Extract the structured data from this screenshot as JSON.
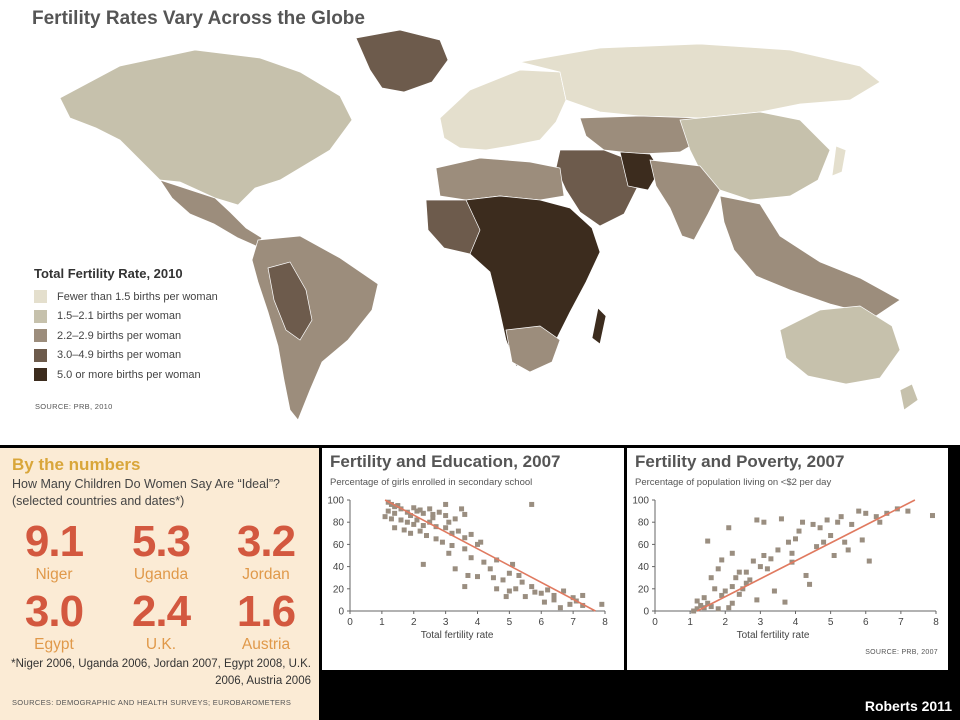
{
  "map": {
    "title": "Fertility Rates Vary Across the Globe",
    "legend_title": "Total Fertility Rate, 2010",
    "legend": [
      {
        "label": "Fewer than 1.5 births per woman",
        "color": "#e4dfcd"
      },
      {
        "label": "1.5–2.1 births per woman",
        "color": "#c6c1ac"
      },
      {
        "label": "2.2–2.9 births per woman",
        "color": "#9c8d7c"
      },
      {
        "label": "3.0–4.9 births per woman",
        "color": "#6d5b4c"
      },
      {
        "label": "5.0 or more births per woman",
        "color": "#3c2c1e"
      }
    ],
    "source": "SOURCE: PRB, 2010"
  },
  "numbers": {
    "title": "By the numbers",
    "subtitle": "How Many Children Do Women Say Are “Ideal”? (selected countries and dates*)",
    "stats": [
      {
        "value": "9.1",
        "country": "Niger"
      },
      {
        "value": "5.3",
        "country": "Uganda"
      },
      {
        "value": "3.2",
        "country": "Jordan"
      },
      {
        "value": "3.0",
        "country": "Egypt"
      },
      {
        "value": "2.4",
        "country": "U.K."
      },
      {
        "value": "1.6",
        "country": "Austria"
      }
    ],
    "note": "*Niger 2006, Uganda 2006, Jordan 2007, Egypt 2008, U.K. 2006, Austria 2006",
    "source": "SOURCES: DEMOGRAPHIC AND HEALTH SURVEYS; EUROBAROMETERS"
  },
  "credit": "Roberts 2011",
  "chart_data": [
    {
      "type": "scatter",
      "title": "Fertility and Education, 2007",
      "subtitle": "Percentage of girls enrolled in secondary school",
      "xlabel": "Total fertility rate",
      "ylabel": "",
      "xlim": [
        0,
        8
      ],
      "ylim": [
        0,
        100
      ],
      "xticks": [
        0,
        1,
        2,
        3,
        4,
        5,
        6,
        7,
        8
      ],
      "yticks": [
        0,
        20,
        40,
        60,
        80,
        100
      ],
      "grid": false,
      "point_color": "#9a8e80",
      "trend_color": "#e07a60",
      "trendline": [
        [
          1.1,
          100
        ],
        [
          7.7,
          0
        ]
      ],
      "points": [
        [
          1.2,
          98
        ],
        [
          1.3,
          96
        ],
        [
          1.4,
          94
        ],
        [
          1.5,
          95
        ],
        [
          1.2,
          90
        ],
        [
          1.4,
          88
        ],
        [
          1.6,
          92
        ],
        [
          1.8,
          89
        ],
        [
          1.9,
          86
        ],
        [
          2.0,
          93
        ],
        [
          2.1,
          90
        ],
        [
          2.2,
          91
        ],
        [
          2.3,
          88
        ],
        [
          2.5,
          92
        ],
        [
          2.6,
          87
        ],
        [
          2.8,
          89
        ],
        [
          3.0,
          86
        ],
        [
          3.3,
          83
        ],
        [
          3.6,
          87
        ],
        [
          1.1,
          85
        ],
        [
          1.3,
          83
        ],
        [
          1.6,
          82
        ],
        [
          1.8,
          80
        ],
        [
          2.0,
          78
        ],
        [
          2.1,
          82
        ],
        [
          2.3,
          77
        ],
        [
          2.5,
          80
        ],
        [
          2.7,
          76
        ],
        [
          3.0,
          75
        ],
        [
          3.2,
          70
        ],
        [
          3.4,
          72
        ],
        [
          3.6,
          66
        ],
        [
          3.8,
          69
        ],
        [
          4.1,
          62
        ],
        [
          1.4,
          75
        ],
        [
          1.7,
          73
        ],
        [
          1.9,
          70
        ],
        [
          2.2,
          72
        ],
        [
          2.4,
          68
        ],
        [
          2.7,
          65
        ],
        [
          2.9,
          62
        ],
        [
          3.2,
          59
        ],
        [
          3.6,
          56
        ],
        [
          4.0,
          60
        ],
        [
          2.3,
          42
        ],
        [
          3.1,
          52
        ],
        [
          3.8,
          48
        ],
        [
          4.2,
          44
        ],
        [
          4.4,
          38
        ],
        [
          4.6,
          46
        ],
        [
          5.1,
          42
        ],
        [
          3.3,
          38
        ],
        [
          3.7,
          32
        ],
        [
          4.0,
          31
        ],
        [
          4.5,
          30
        ],
        [
          4.8,
          28
        ],
        [
          5.0,
          34
        ],
        [
          5.3,
          32
        ],
        [
          5.4,
          26
        ],
        [
          5.7,
          22
        ],
        [
          3.6,
          22
        ],
        [
          4.6,
          20
        ],
        [
          5.0,
          18
        ],
        [
          5.2,
          20
        ],
        [
          5.8,
          17
        ],
        [
          6.0,
          16
        ],
        [
          6.2,
          19
        ],
        [
          6.4,
          14
        ],
        [
          6.7,
          18
        ],
        [
          7.0,
          12
        ],
        [
          4.9,
          13
        ],
        [
          5.5,
          13
        ],
        [
          6.4,
          10
        ],
        [
          7.1,
          9
        ],
        [
          7.3,
          14
        ],
        [
          6.1,
          8
        ],
        [
          6.9,
          6
        ],
        [
          7.3,
          5
        ],
        [
          7.9,
          6
        ],
        [
          6.6,
          3
        ],
        [
          3.0,
          96
        ],
        [
          3.5,
          92
        ],
        [
          5.7,
          96
        ],
        [
          2.6,
          84
        ],
        [
          3.1,
          80
        ]
      ]
    },
    {
      "type": "scatter",
      "title": "Fertility and Poverty, 2007",
      "subtitle": "Percentage of population living on <$2 per day",
      "xlabel": "Total fertility rate",
      "ylabel": "",
      "xlim": [
        0,
        8
      ],
      "ylim": [
        0,
        100
      ],
      "xticks": [
        0,
        1,
        2,
        3,
        4,
        5,
        6,
        7,
        8
      ],
      "yticks": [
        0,
        20,
        40,
        60,
        80,
        100
      ],
      "grid": false,
      "point_color": "#9a8e80",
      "trend_color": "#e07a60",
      "trendline": [
        [
          1.2,
          0
        ],
        [
          7.4,
          100
        ]
      ],
      "points": [
        [
          1.1,
          0
        ],
        [
          1.2,
          2
        ],
        [
          1.3,
          5
        ],
        [
          1.4,
          3
        ],
        [
          1.2,
          9
        ],
        [
          1.4,
          12
        ],
        [
          1.5,
          7
        ],
        [
          1.6,
          4
        ],
        [
          1.8,
          2
        ],
        [
          2.1,
          3
        ],
        [
          2.2,
          7
        ],
        [
          1.9,
          14
        ],
        [
          1.7,
          20
        ],
        [
          2.0,
          18
        ],
        [
          2.2,
          22
        ],
        [
          2.4,
          15
        ],
        [
          2.5,
          20
        ],
        [
          2.6,
          25
        ],
        [
          2.3,
          30
        ],
        [
          1.8,
          38
        ],
        [
          1.9,
          46
        ],
        [
          1.5,
          63
        ],
        [
          2.1,
          75
        ],
        [
          2.8,
          45
        ],
        [
          3.0,
          40
        ],
        [
          3.2,
          38
        ],
        [
          3.1,
          50
        ],
        [
          3.3,
          47
        ],
        [
          3.5,
          55
        ],
        [
          3.8,
          62
        ],
        [
          4.0,
          65
        ],
        [
          2.9,
          82
        ],
        [
          3.1,
          80
        ],
        [
          3.6,
          83
        ],
        [
          4.2,
          80
        ],
        [
          4.5,
          78
        ],
        [
          4.7,
          75
        ],
        [
          4.9,
          82
        ],
        [
          5.2,
          80
        ],
        [
          5.3,
          85
        ],
        [
          5.6,
          78
        ],
        [
          5.8,
          90
        ],
        [
          6.0,
          88
        ],
        [
          6.3,
          85
        ],
        [
          6.6,
          88
        ],
        [
          6.9,
          92
        ],
        [
          7.2,
          90
        ],
        [
          7.9,
          86
        ],
        [
          5.0,
          68
        ],
        [
          5.4,
          62
        ],
        [
          5.9,
          64
        ],
        [
          4.6,
          58
        ],
        [
          3.9,
          52
        ],
        [
          2.7,
          28
        ],
        [
          2.4,
          35
        ],
        [
          2.9,
          10
        ],
        [
          3.7,
          8
        ],
        [
          4.3,
          32
        ],
        [
          6.1,
          45
        ],
        [
          5.5,
          55
        ],
        [
          4.1,
          72
        ],
        [
          4.8,
          62
        ],
        [
          2.2,
          52
        ],
        [
          3.4,
          18
        ],
        [
          2.6,
          35
        ],
        [
          3.9,
          44
        ],
        [
          4.4,
          24
        ],
        [
          5.1,
          50
        ],
        [
          6.4,
          80
        ],
        [
          1.6,
          30
        ]
      ]
    }
  ]
}
